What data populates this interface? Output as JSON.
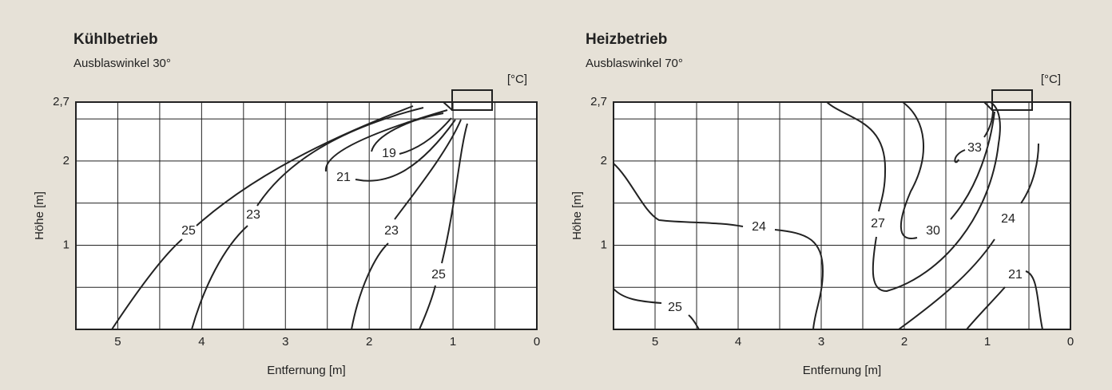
{
  "chart_data": [
    {
      "type": "contour",
      "title": "Kühlbetrieb",
      "subtitle": "Ausblaswinkel 30°",
      "unit": "[°C]",
      "xlabel": "Entfernung [m]",
      "ylabel": "Höhe [m]",
      "xlim": [
        5.5,
        0
      ],
      "ylim": [
        0,
        2.7
      ],
      "xticks": [
        5,
        4,
        3,
        2,
        1,
        0
      ],
      "yticks": [
        {
          "value": 2.7,
          "label": "2,7"
        },
        2,
        1
      ],
      "xgrid": [
        0.5,
        1,
        1.5,
        2,
        2.5,
        3,
        3.5,
        4,
        4.5,
        5
      ],
      "ygrid": [
        0.5,
        1,
        1.5,
        2,
        2.5
      ],
      "contours": [
        25,
        23,
        21,
        19,
        23,
        25
      ]
    },
    {
      "type": "contour",
      "title": "Heizbetrieb",
      "subtitle": "Ausblaswinkel 70°",
      "unit": "[°C]",
      "xlabel": "Entfernung [m]",
      "ylabel": "Höhe [m]",
      "xlim": [
        5.5,
        0
      ],
      "ylim": [
        0,
        2.7
      ],
      "xticks": [
        5,
        4,
        3,
        2,
        1,
        0
      ],
      "yticks": [
        {
          "value": 2.7,
          "label": "2,7"
        },
        2,
        1
      ],
      "xgrid": [
        0.5,
        1,
        1.5,
        2,
        2.5,
        3,
        3.5,
        4,
        4.5,
        5
      ],
      "ygrid": [
        0.5,
        1,
        1.5,
        2,
        2.5
      ],
      "contours": [
        25,
        24,
        27,
        30,
        33,
        24,
        21
      ]
    }
  ]
}
